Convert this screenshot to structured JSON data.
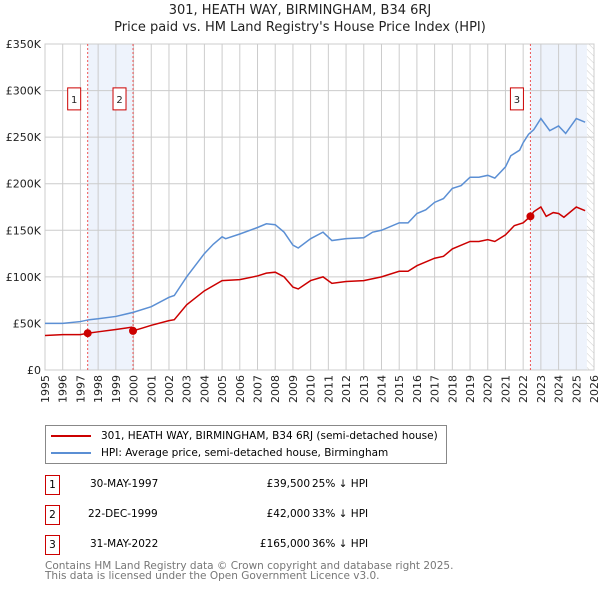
{
  "chart_data": {
    "type": "line",
    "title": "301, HEATH WAY, BIRMINGHAM, B34 6RJ",
    "subtitle": "Price paid vs. HM Land Registry's House Price Index (HPI)",
    "xlim": [
      1995,
      2026
    ],
    "ylim": [
      0,
      350000
    ],
    "x_ticks": [
      "1995",
      "1996",
      "1997",
      "1998",
      "1999",
      "2000",
      "2001",
      "2002",
      "2003",
      "2004",
      "2005",
      "2006",
      "2007",
      "2008",
      "2009",
      "2010",
      "2011",
      "2012",
      "2013",
      "2014",
      "2015",
      "2016",
      "2017",
      "2018",
      "2019",
      "2020",
      "2021",
      "2022",
      "2023",
      "2024",
      "2025",
      "2026"
    ],
    "y_ticks": [
      {
        "v": 0,
        "label": "£0"
      },
      {
        "v": 50000,
        "label": "£50K"
      },
      {
        "v": 100000,
        "label": "£100K"
      },
      {
        "v": 150000,
        "label": "£150K"
      },
      {
        "v": 200000,
        "label": "£200K"
      },
      {
        "v": 250000,
        "label": "£250K"
      },
      {
        "v": 300000,
        "label": "£300K"
      },
      {
        "v": 350000,
        "label": "£350K"
      }
    ],
    "grid": true,
    "series": [
      {
        "name": "301, HEATH WAY, BIRMINGHAM, B34 6RJ (semi-detached house)",
        "color": "#cc0000",
        "x": [
          1995,
          1996,
          1997,
          1997.41,
          1998,
          1999,
          1999.9,
          1999.97,
          2000.5,
          2001,
          2002,
          2002.3,
          2003,
          2004,
          2005,
          2006,
          2007,
          2007.5,
          2008,
          2008.5,
          2009,
          2009.3,
          2010,
          2010.7,
          2011.2,
          2012,
          2013,
          2014,
          2015,
          2015.5,
          2016,
          2017,
          2017.5,
          2018,
          2019,
          2019.5,
          2020,
          2020.4,
          2021,
          2021.5,
          2022,
          2022.41,
          2022.6,
          2023,
          2023.3,
          2023.7,
          2024,
          2024.3,
          2025,
          2025.5
        ],
        "y": [
          37000,
          38000,
          38000,
          39500,
          41000,
          43500,
          46000,
          42000,
          45000,
          48000,
          53000,
          54000,
          70000,
          85000,
          96000,
          97000,
          101000,
          104000,
          105000,
          100000,
          89000,
          87000,
          96000,
          100000,
          93000,
          95000,
          96000,
          100000,
          106000,
          106000,
          112000,
          120000,
          122000,
          130000,
          138000,
          138000,
          140000,
          138000,
          145000,
          155000,
          158000,
          165000,
          170000,
          175000,
          165000,
          169000,
          168000,
          164000,
          175000,
          171000
        ]
      },
      {
        "name": "HPI: Average price, semi-detached house, Birmingham",
        "color": "#5b8fd4",
        "x": [
          1995,
          1996,
          1997,
          1997.5,
          1998,
          1999,
          2000,
          2001,
          2002,
          2002.3,
          2003,
          2004,
          2004.5,
          2005,
          2005.2,
          2006,
          2007,
          2007.5,
          2008,
          2008.5,
          2009,
          2009.3,
          2010,
          2010.7,
          2011.2,
          2012,
          2013,
          2013.5,
          2014,
          2015,
          2015.5,
          2016,
          2016.5,
          2017,
          2017.5,
          2018,
          2018.5,
          2019,
          2019.5,
          2020,
          2020.4,
          2021,
          2021.3,
          2021.8,
          2022,
          2022.3,
          2022.6,
          2023,
          2023.5,
          2024,
          2024.4,
          2025,
          2025.5
        ],
        "y": [
          50000,
          50000,
          52000,
          54000,
          55000,
          57500,
          62000,
          68000,
          78000,
          80000,
          100000,
          125000,
          135000,
          143000,
          141000,
          146000,
          153000,
          157000,
          156000,
          148000,
          134000,
          131000,
          141000,
          148000,
          139000,
          141000,
          142000,
          148000,
          150000,
          158000,
          158000,
          168000,
          172000,
          180000,
          184000,
          195000,
          198000,
          207000,
          207000,
          209000,
          206000,
          218000,
          230000,
          236000,
          244000,
          253000,
          258000,
          270000,
          257000,
          262000,
          254000,
          270000,
          266000
        ]
      }
    ],
    "sales": [
      {
        "n": "1",
        "x": 1997.41,
        "y": 39500
      },
      {
        "n": "2",
        "x": 1999.97,
        "y": 42000
      },
      {
        "n": "3",
        "x": 2022.41,
        "y": 165000
      }
    ],
    "data_end": 2025.6
  },
  "legend": {
    "property": "301, HEATH WAY, BIRMINGHAM, B34 6RJ (semi-detached house)",
    "hpi": "HPI: Average price, semi-detached house, Birmingham",
    "property_color": "#cc0000",
    "hpi_color": "#5b8fd4"
  },
  "transactions": [
    {
      "n": "1",
      "date": "30-MAY-1997",
      "price": "£39,500",
      "diff": "25% ↓ HPI"
    },
    {
      "n": "2",
      "date": "22-DEC-1999",
      "price": "£42,000",
      "diff": "33% ↓ HPI"
    },
    {
      "n": "3",
      "date": "31-MAY-2022",
      "price": "£165,000",
      "diff": "36% ↓ HPI"
    }
  ],
  "footer": {
    "line1": "Contains HM Land Registry data © Crown copyright and database right 2025.",
    "line2": "This data is licensed under the Open Government Licence v3.0."
  }
}
